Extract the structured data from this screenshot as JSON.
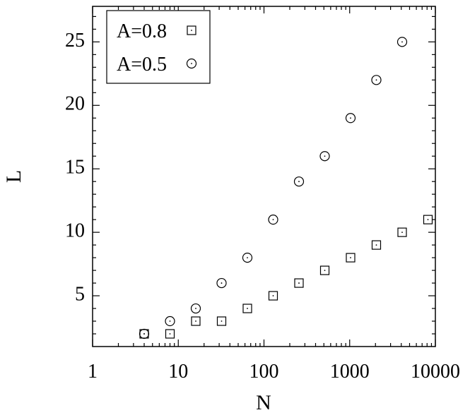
{
  "chart_data": {
    "type": "scatter",
    "xlabel": "N",
    "ylabel": "L",
    "xscale": "log",
    "xlim": [
      1,
      10000
    ],
    "ylim": [
      1,
      27.8
    ],
    "grid": false,
    "legend_position": "top-left",
    "x_ticks": [
      {
        "value": 1,
        "label": "1"
      },
      {
        "value": 10,
        "label": "10"
      },
      {
        "value": 100,
        "label": "100"
      },
      {
        "value": 1000,
        "label": "1000"
      },
      {
        "value": 10000,
        "label": "10000"
      }
    ],
    "y_ticks": [
      {
        "value": 5,
        "label": "5"
      },
      {
        "value": 10,
        "label": "10"
      },
      {
        "value": 15,
        "label": "15"
      },
      {
        "value": 20,
        "label": "20"
      },
      {
        "value": 25,
        "label": "25"
      }
    ],
    "series": [
      {
        "name": "A=0.8",
        "marker": "square",
        "x": [
          4,
          8,
          16,
          32,
          64,
          128,
          256,
          512,
          1024,
          2048,
          4096,
          8192
        ],
        "y": [
          2,
          2,
          3,
          3,
          4,
          5,
          6,
          7,
          8,
          9,
          10,
          11
        ]
      },
      {
        "name": "A=0.5",
        "marker": "circle",
        "x": [
          4,
          8,
          16,
          32,
          64,
          128,
          256,
          512,
          1024,
          2048,
          4096
        ],
        "y": [
          2,
          3,
          4,
          6,
          8,
          11,
          14,
          16,
          19,
          22,
          25
        ]
      }
    ]
  }
}
